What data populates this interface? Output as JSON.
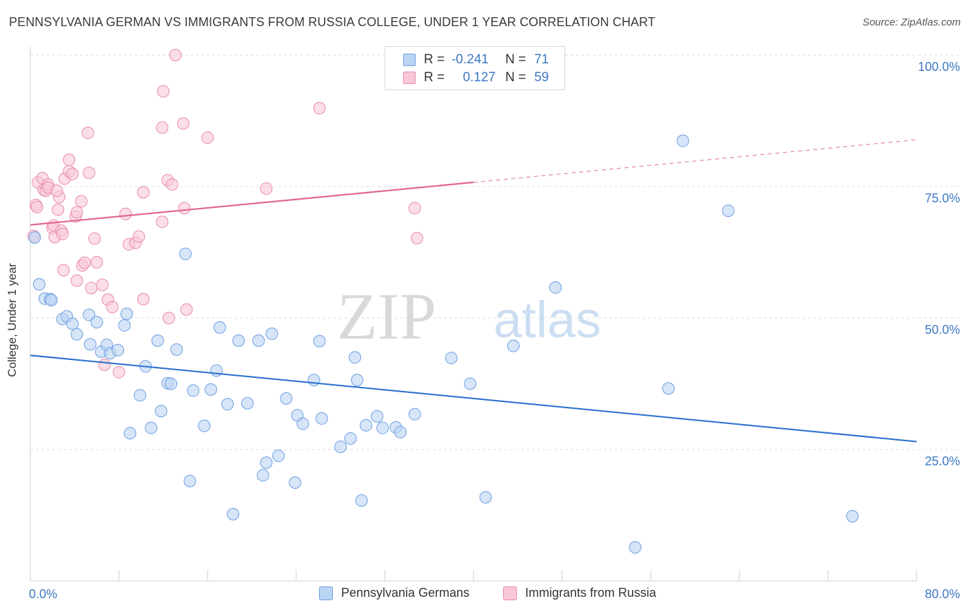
{
  "title": "PENNSYLVANIA GERMAN VS IMMIGRANTS FROM RUSSIA COLLEGE, UNDER 1 YEAR CORRELATION CHART",
  "source": "Source: ZipAtlas.com",
  "watermark": {
    "zip": "ZIP",
    "atlas": "atlas"
  },
  "legend": {
    "r_label": "R =",
    "n_label": "N =",
    "rows": [
      {
        "r": "-0.241",
        "n": "71",
        "color": "#6b9ee0",
        "fill": "#bcd4f3"
      },
      {
        "r": "0.127",
        "n": "59",
        "color": "#e88aa8",
        "fill": "#f8c8d7"
      }
    ]
  },
  "bottom_legend": [
    "Pennsylvania Germans",
    "Immigrants from Russia"
  ],
  "chart_data": {
    "type": "scatter",
    "title": "PENNSYLVANIA GERMAN VS IMMIGRANTS FROM RUSSIA COLLEGE, UNDER 1 YEAR CORRELATION CHART",
    "xlabel": "",
    "ylabel": "College, Under 1 year",
    "xlim": [
      0,
      80
    ],
    "ylim": [
      0,
      100
    ],
    "x_tick_labels": [
      "0.0%",
      "80.0%"
    ],
    "y_tick_labels": [
      "100.0%",
      "75.0%",
      "50.0%",
      "25.0%"
    ],
    "y_ticks": [
      100,
      75,
      50,
      25
    ],
    "grid": true,
    "legend_position": "top-center",
    "series": [
      {
        "name": "Pennsylvania Germans",
        "color": "#6b9ee0",
        "fill": "#bcd4f3",
        "trend": {
          "x0": 0,
          "y0": 42.9,
          "x1": 80,
          "y1": 26.5,
          "style": "solid",
          "color": "#2e72cf"
        },
        "points": [
          [
            0.4,
            65.3
          ],
          [
            0.8,
            56.4
          ],
          [
            1.3,
            53.7
          ],
          [
            1.8,
            53.6
          ],
          [
            1.9,
            53.4
          ],
          [
            2.9,
            49.8
          ],
          [
            3.3,
            50.3
          ],
          [
            3.8,
            48.9
          ],
          [
            4.2,
            46.9
          ],
          [
            5.3,
            50.6
          ],
          [
            6.0,
            49.2
          ],
          [
            5.4,
            45.0
          ],
          [
            6.4,
            43.6
          ],
          [
            6.9,
            44.9
          ],
          [
            7.2,
            43.3
          ],
          [
            7.9,
            43.9
          ],
          [
            8.5,
            48.6
          ],
          [
            8.7,
            50.8
          ],
          [
            9.0,
            28.1
          ],
          [
            9.9,
            35.3
          ],
          [
            10.4,
            40.8
          ],
          [
            10.9,
            29.1
          ],
          [
            11.5,
            45.7
          ],
          [
            11.8,
            32.3
          ],
          [
            12.4,
            37.6
          ],
          [
            12.7,
            37.5
          ],
          [
            13.2,
            44.0
          ],
          [
            14.0,
            62.2
          ],
          [
            14.4,
            19.0
          ],
          [
            14.7,
            36.2
          ],
          [
            15.7,
            29.5
          ],
          [
            16.3,
            36.4
          ],
          [
            16.8,
            40.0
          ],
          [
            17.1,
            48.2
          ],
          [
            17.8,
            33.6
          ],
          [
            18.3,
            12.7
          ],
          [
            18.8,
            45.7
          ],
          [
            19.6,
            33.8
          ],
          [
            20.6,
            45.7
          ],
          [
            21.0,
            20.1
          ],
          [
            21.3,
            22.5
          ],
          [
            21.8,
            47.0
          ],
          [
            22.4,
            23.8
          ],
          [
            23.1,
            34.7
          ],
          [
            23.9,
            18.7
          ],
          [
            24.1,
            31.5
          ],
          [
            24.6,
            29.9
          ],
          [
            25.6,
            38.2
          ],
          [
            26.1,
            45.6
          ],
          [
            26.3,
            30.9
          ],
          [
            28.0,
            25.5
          ],
          [
            28.9,
            27.1
          ],
          [
            29.3,
            42.5
          ],
          [
            29.5,
            38.2
          ],
          [
            29.9,
            15.3
          ],
          [
            30.3,
            29.6
          ],
          [
            31.3,
            31.3
          ],
          [
            31.8,
            29.1
          ],
          [
            33.0,
            29.2
          ],
          [
            33.4,
            28.3
          ],
          [
            34.7,
            31.7
          ],
          [
            38.0,
            42.4
          ],
          [
            39.7,
            37.5
          ],
          [
            41.1,
            15.9
          ],
          [
            43.6,
            44.7
          ],
          [
            47.4,
            55.8
          ],
          [
            54.6,
            6.4
          ],
          [
            57.6,
            36.6
          ],
          [
            58.9,
            83.7
          ],
          [
            63.0,
            70.4
          ],
          [
            74.2,
            12.3
          ]
        ]
      },
      {
        "name": "Immigrants from Russia",
        "color": "#e88aa8",
        "fill": "#f8c8d7",
        "trend": {
          "x0": 0,
          "y0": 67.7,
          "x1": 40,
          "y1": 75.8,
          "x2": 80,
          "y2": 83.9,
          "style": "solid-then-dashed",
          "color": "#e0668f"
        },
        "points": [
          [
            0.3,
            65.6
          ],
          [
            0.5,
            71.5
          ],
          [
            0.6,
            71.1
          ],
          [
            0.7,
            75.8
          ],
          [
            1.1,
            76.6
          ],
          [
            1.2,
            74.4
          ],
          [
            1.4,
            74.2
          ],
          [
            1.6,
            75.4
          ],
          [
            1.6,
            74.8
          ],
          [
            2.0,
            67.1
          ],
          [
            2.1,
            67.6
          ],
          [
            2.2,
            65.4
          ],
          [
            2.5,
            70.6
          ],
          [
            2.6,
            73.0
          ],
          [
            2.8,
            66.6
          ],
          [
            2.9,
            66.0
          ],
          [
            3.0,
            59.1
          ],
          [
            3.1,
            76.5
          ],
          [
            3.5,
            80.1
          ],
          [
            3.5,
            77.9
          ],
          [
            3.8,
            77.4
          ],
          [
            4.1,
            69.3
          ],
          [
            4.2,
            57.1
          ],
          [
            4.2,
            70.1
          ],
          [
            4.7,
            60.0
          ],
          [
            4.6,
            72.2
          ],
          [
            4.9,
            60.5
          ],
          [
            5.2,
            85.2
          ],
          [
            5.3,
            77.6
          ],
          [
            5.5,
            55.7
          ],
          [
            5.8,
            65.1
          ],
          [
            6.0,
            60.6
          ],
          [
            6.5,
            56.3
          ],
          [
            6.7,
            41.1
          ],
          [
            7.0,
            53.5
          ],
          [
            7.4,
            52.1
          ],
          [
            8.0,
            39.7
          ],
          [
            8.6,
            69.8
          ],
          [
            8.9,
            64.0
          ],
          [
            9.5,
            64.3
          ],
          [
            9.8,
            65.5
          ],
          [
            10.2,
            53.6
          ],
          [
            10.2,
            73.9
          ],
          [
            11.9,
            68.3
          ],
          [
            11.9,
            86.2
          ],
          [
            12.0,
            93.1
          ],
          [
            12.4,
            76.2
          ],
          [
            12.5,
            50.0
          ],
          [
            12.8,
            75.4
          ],
          [
            13.1,
            100.0
          ],
          [
            13.8,
            87.0
          ],
          [
            13.9,
            70.9
          ],
          [
            14.1,
            51.6
          ],
          [
            16.0,
            84.3
          ],
          [
            21.3,
            74.6
          ],
          [
            26.1,
            89.9
          ],
          [
            34.7,
            70.9
          ],
          [
            34.9,
            65.2
          ],
          [
            2.4,
            74.2
          ]
        ]
      }
    ]
  }
}
